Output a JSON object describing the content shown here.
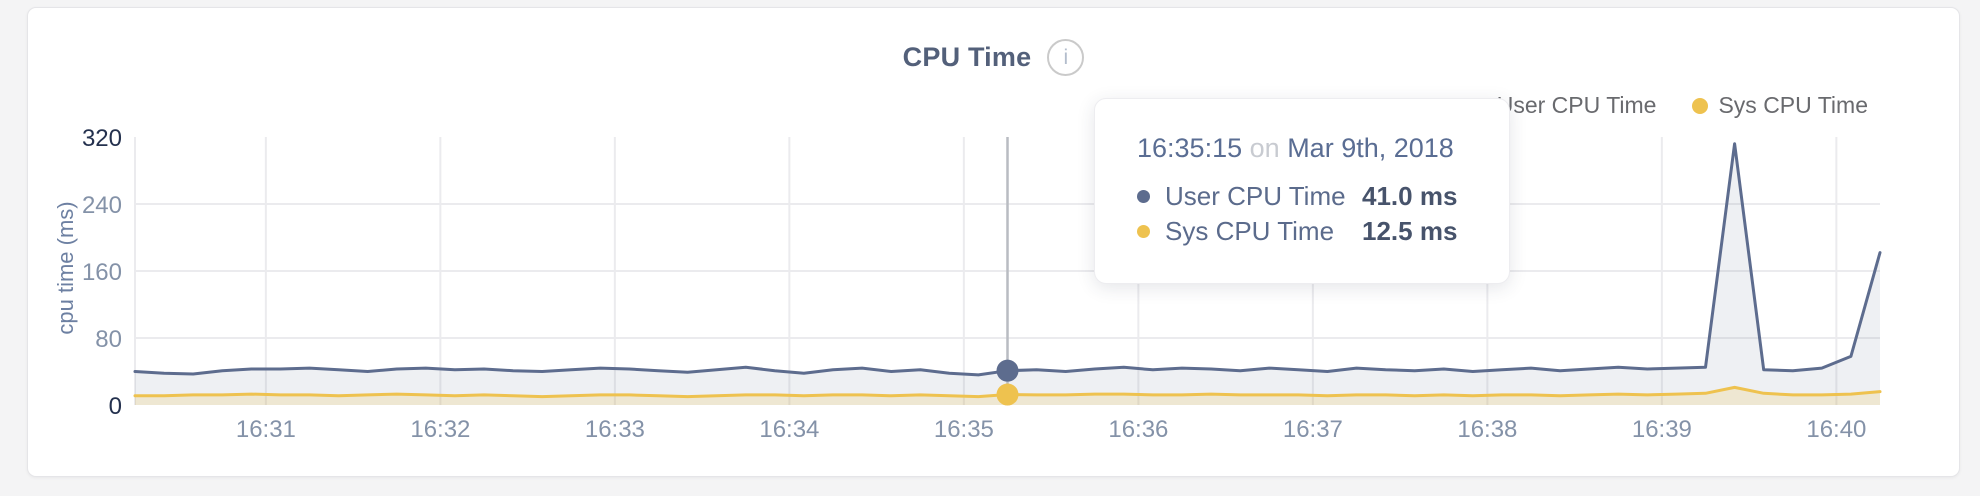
{
  "icons": {
    "info": "i"
  },
  "tooltip": {
    "time": "16:35:15",
    "connector": "on",
    "date": "Mar 9th, 2018",
    "rows": [
      {
        "label": "User CPU Time",
        "value": "41.0 ms",
        "color": "#5d6c8e"
      },
      {
        "label": "Sys CPU Time",
        "value": "12.5 ms",
        "color": "#eec24f"
      }
    ]
  },
  "chart_data": {
    "type": "area",
    "title": "CPU Time",
    "ylabel": "cpu time (ms)",
    "ylim": [
      0,
      320
    ],
    "yticks": [
      0,
      80,
      160,
      240,
      320
    ],
    "xticks": [
      "16:31",
      "16:32",
      "16:33",
      "16:34",
      "16:35",
      "16:36",
      "16:37",
      "16:38",
      "16:39",
      "16:40"
    ],
    "x_range": [
      "16:30:15",
      "16:40:15"
    ],
    "grid": true,
    "legend_position": "top-right",
    "hover": {
      "time": "16:35:15",
      "values": [
        41.0,
        12.5
      ]
    },
    "x": [
      "16:30:15",
      "16:30:25",
      "16:30:35",
      "16:30:45",
      "16:30:55",
      "16:31:05",
      "16:31:15",
      "16:31:25",
      "16:31:35",
      "16:31:45",
      "16:31:55",
      "16:32:05",
      "16:32:15",
      "16:32:25",
      "16:32:35",
      "16:32:45",
      "16:32:55",
      "16:33:05",
      "16:33:15",
      "16:33:25",
      "16:33:35",
      "16:33:45",
      "16:33:55",
      "16:34:05",
      "16:34:15",
      "16:34:25",
      "16:34:35",
      "16:34:45",
      "16:34:55",
      "16:35:05",
      "16:35:15",
      "16:35:25",
      "16:35:35",
      "16:35:45",
      "16:35:55",
      "16:36:05",
      "16:36:15",
      "16:36:25",
      "16:36:35",
      "16:36:45",
      "16:36:55",
      "16:37:05",
      "16:37:15",
      "16:37:25",
      "16:37:35",
      "16:37:45",
      "16:37:55",
      "16:38:05",
      "16:38:15",
      "16:38:25",
      "16:38:35",
      "16:38:45",
      "16:38:55",
      "16:39:05",
      "16:39:15",
      "16:39:25",
      "16:39:35",
      "16:39:45",
      "16:39:55",
      "16:40:05",
      "16:40:15"
    ],
    "series": [
      {
        "name": "User CPU Time",
        "color": "#5d6c8e",
        "values": [
          40,
          38,
          37,
          41,
          43,
          43,
          44,
          42,
          40,
          43,
          44,
          42,
          43,
          41,
          40,
          42,
          44,
          43,
          41,
          39,
          42,
          45,
          41,
          38,
          42,
          44,
          40,
          42,
          38,
          36,
          41,
          42,
          40,
          43,
          45,
          42,
          44,
          43,
          41,
          44,
          42,
          40,
          44,
          42,
          41,
          43,
          40,
          42,
          44,
          41,
          43,
          45,
          43,
          44,
          45,
          312,
          42,
          41,
          44,
          58,
          182
        ]
      },
      {
        "name": "Sys CPU Time",
        "color": "#eec24f",
        "values": [
          11,
          11,
          12,
          12,
          13,
          12,
          12,
          11,
          12,
          13,
          12,
          11,
          12,
          11,
          10,
          11,
          12,
          12,
          11,
          10,
          11,
          12,
          12,
          11,
          12,
          12,
          11,
          12,
          11,
          10,
          12.5,
          12,
          12,
          13,
          13,
          12,
          12,
          13,
          12,
          12,
          12,
          11,
          12,
          12,
          11,
          12,
          11,
          12,
          12,
          11,
          12,
          13,
          12,
          13,
          14,
          21,
          14,
          12,
          12,
          13,
          16
        ]
      }
    ]
  }
}
